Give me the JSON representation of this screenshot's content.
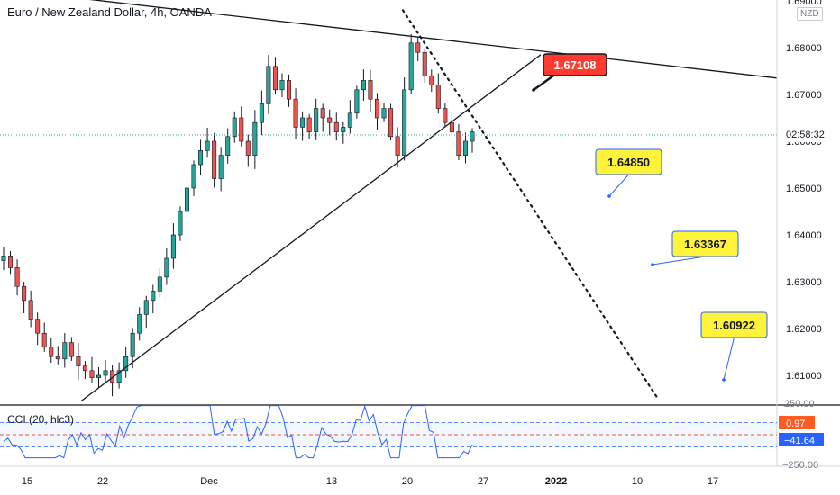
{
  "header": {
    "title": "Euro / New Zealand Dollar, 4h, OANDA",
    "currency": "NZD"
  },
  "indicator": {
    "label": "CCI (20, hlc3)",
    "upper_badge": "0.97",
    "current_badge": "−41.64",
    "y_ticks": [
      "250.00",
      "−250.00"
    ]
  },
  "price_axis": {
    "ticks": [
      "1.69000",
      "1.68000",
      "1.67000",
      "1.66000",
      "1.65000",
      "1.64000",
      "1.63000",
      "1.62000",
      "1.61000"
    ],
    "countdown": "02:58:32"
  },
  "annotations": [
    {
      "text": "1.67108",
      "style": "red"
    },
    {
      "text": "1.64850",
      "style": "yellow"
    },
    {
      "text": "1.63367",
      "style": "yellow"
    },
    {
      "text": "1.60922",
      "style": "yellow"
    }
  ],
  "colors": {
    "up": "#26a69a",
    "down": "#ef5350",
    "wick": "#131722",
    "trendline": "#131722",
    "cci_line": "#2962ff",
    "badge_red": "#ff3b30",
    "badge_yellow": "#fff23b"
  },
  "chart_data": {
    "type": "candlestick",
    "title": "Euro / New Zealand Dollar, 4h, OANDA",
    "ylim": [
      1.605,
      1.69
    ],
    "x_ticks": [
      "15",
      "22",
      "Dec",
      "13",
      "20",
      "27",
      "2022",
      "10",
      "17"
    ],
    "current_price": 1.66135,
    "price_path_close": [
      1.6355,
      1.633,
      1.629,
      1.626,
      1.622,
      1.619,
      1.616,
      1.614,
      1.6135,
      1.617,
      1.614,
      1.612,
      1.611,
      1.6095,
      1.61,
      1.611,
      1.6085,
      1.611,
      1.614,
      1.619,
      1.623,
      1.626,
      1.628,
      1.631,
      1.635,
      1.64,
      1.645,
      1.65,
      1.655,
      1.658,
      1.66,
      1.652,
      1.657,
      1.661,
      1.665,
      1.66,
      1.657,
      1.664,
      1.668,
      1.676,
      1.671,
      1.673,
      1.669,
      1.663,
      1.665,
      1.662,
      1.667,
      1.665,
      1.664,
      1.662,
      1.663,
      1.666,
      1.671,
      1.673,
      1.669,
      1.665,
      1.667,
      1.661,
      1.657,
      1.671,
      1.681,
      1.679,
      1.674,
      1.672,
      1.667,
      1.664,
      1.662,
      1.657,
      1.66,
      1.662
    ],
    "trendlines": [
      {
        "points": [
          [
            0,
            1.6925
          ],
          [
            862,
            1.6735
          ]
        ]
      },
      {
        "points": [
          [
            90,
            1.6045
          ],
          [
            600,
            1.6785
          ]
        ]
      },
      {
        "points": [
          [
            447,
            1.688
          ],
          [
            730,
            1.605
          ]
        ],
        "dotted": true
      }
    ],
    "cci": {
      "label": "CCI (20, hlc3)",
      "last_value": -41.64,
      "levels": [
        100,
        0,
        -100
      ]
    }
  }
}
